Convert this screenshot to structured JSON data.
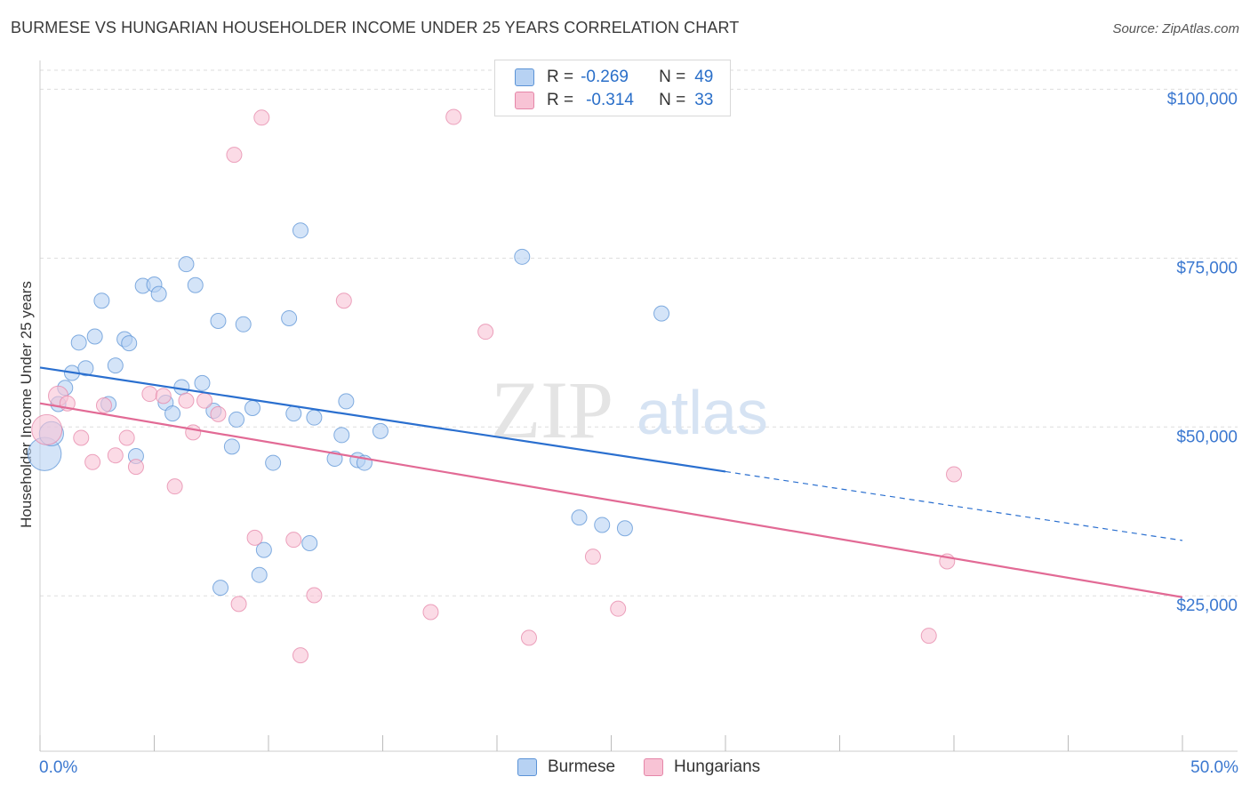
{
  "title": "BURMESE VS HUNGARIAN HOUSEHOLDER INCOME UNDER 25 YEARS CORRELATION CHART",
  "source": "Source: ZipAtlas.com",
  "watermark": {
    "zip": "ZIP",
    "atlas": "atlas"
  },
  "legend_top": {
    "rows": [
      {
        "r_label": "R =",
        "r_value": "-0.269",
        "n_label": "N =",
        "n_value": "49"
      },
      {
        "r_label": "R =",
        "r_value": "-0.314",
        "n_label": "N =",
        "n_value": "33"
      }
    ]
  },
  "legend_bottom": {
    "items": [
      "Burmese",
      "Hungarians"
    ]
  },
  "colors": {
    "burmese_fill": "#b7d2f3",
    "burmese_stroke": "#5b93d6",
    "burmese_line": "#2a6fcf",
    "hungarian_fill": "#f8c3d5",
    "hungarian_stroke": "#e586a8",
    "hungarian_line": "#e26a95",
    "tick_label": "#3b78d0",
    "grid": "#dddddd"
  },
  "chart_data": {
    "type": "scatter",
    "title": "BURMESE VS HUNGARIAN HOUSEHOLDER INCOME UNDER 25 YEARS CORRELATION CHART",
    "xlabel": "",
    "ylabel": "Householder Income Under 25 years",
    "xlim": [
      0,
      50
    ],
    "ylim": [
      2000,
      104000
    ],
    "x_tick_labels": [
      "0.0%",
      "50.0%"
    ],
    "y_ticks": [
      25000,
      50000,
      75000,
      100000
    ],
    "y_tick_labels": [
      "$25,000",
      "$50,000",
      "$75,000",
      "$100,000"
    ],
    "grid": true,
    "legend_placement": "bottom",
    "series": [
      {
        "name": "Burmese",
        "stats": {
          "R": -0.269,
          "N": 49
        },
        "trend": {
          "x0": 0,
          "y0": 58800,
          "x1": 30,
          "y1": 43400,
          "dash_to_x": 50,
          "dash_to_y": 33200
        },
        "points": [
          {
            "x": 0.2,
            "y": 46000,
            "s": 2.2
          },
          {
            "x": 0.5,
            "y": 49000,
            "s": 1.6
          },
          {
            "x": 0.8,
            "y": 53400,
            "s": 1
          },
          {
            "x": 1.1,
            "y": 55800,
            "s": 1
          },
          {
            "x": 1.4,
            "y": 58000,
            "s": 1
          },
          {
            "x": 1.7,
            "y": 62500,
            "s": 1
          },
          {
            "x": 2.0,
            "y": 58700,
            "s": 1
          },
          {
            "x": 2.4,
            "y": 63400,
            "s": 1
          },
          {
            "x": 2.7,
            "y": 68700,
            "s": 1
          },
          {
            "x": 3.0,
            "y": 53400,
            "s": 1
          },
          {
            "x": 3.3,
            "y": 59100,
            "s": 1
          },
          {
            "x": 3.7,
            "y": 63000,
            "s": 1
          },
          {
            "x": 3.9,
            "y": 62400,
            "s": 1
          },
          {
            "x": 4.2,
            "y": 45700,
            "s": 1
          },
          {
            "x": 4.5,
            "y": 70900,
            "s": 1
          },
          {
            "x": 5.0,
            "y": 71100,
            "s": 1
          },
          {
            "x": 5.2,
            "y": 69700,
            "s": 1
          },
          {
            "x": 5.5,
            "y": 53600,
            "s": 1
          },
          {
            "x": 5.8,
            "y": 52000,
            "s": 1
          },
          {
            "x": 6.2,
            "y": 55900,
            "s": 1
          },
          {
            "x": 6.4,
            "y": 74100,
            "s": 1
          },
          {
            "x": 6.8,
            "y": 71000,
            "s": 1
          },
          {
            "x": 7.1,
            "y": 56500,
            "s": 1
          },
          {
            "x": 7.6,
            "y": 52400,
            "s": 1
          },
          {
            "x": 7.8,
            "y": 65700,
            "s": 1
          },
          {
            "x": 7.9,
            "y": 26200,
            "s": 1
          },
          {
            "x": 8.4,
            "y": 47100,
            "s": 1
          },
          {
            "x": 8.6,
            "y": 51100,
            "s": 1
          },
          {
            "x": 8.9,
            "y": 65200,
            "s": 1
          },
          {
            "x": 9.3,
            "y": 52800,
            "s": 1
          },
          {
            "x": 9.6,
            "y": 28100,
            "s": 1
          },
          {
            "x": 9.8,
            "y": 31800,
            "s": 1
          },
          {
            "x": 10.2,
            "y": 44700,
            "s": 1
          },
          {
            "x": 10.9,
            "y": 66100,
            "s": 1
          },
          {
            "x": 11.1,
            "y": 52000,
            "s": 1
          },
          {
            "x": 11.4,
            "y": 79100,
            "s": 1
          },
          {
            "x": 11.8,
            "y": 32800,
            "s": 1
          },
          {
            "x": 12.0,
            "y": 51400,
            "s": 1
          },
          {
            "x": 12.9,
            "y": 45300,
            "s": 1
          },
          {
            "x": 13.2,
            "y": 48800,
            "s": 1
          },
          {
            "x": 13.4,
            "y": 53800,
            "s": 1
          },
          {
            "x": 13.9,
            "y": 45100,
            "s": 1
          },
          {
            "x": 14.2,
            "y": 44700,
            "s": 1
          },
          {
            "x": 14.9,
            "y": 49400,
            "s": 1
          },
          {
            "x": 21.1,
            "y": 75200,
            "s": 1
          },
          {
            "x": 23.6,
            "y": 36600,
            "s": 1
          },
          {
            "x": 24.6,
            "y": 35500,
            "s": 1
          },
          {
            "x": 25.6,
            "y": 35000,
            "s": 1
          },
          {
            "x": 27.2,
            "y": 66800,
            "s": 1
          }
        ]
      },
      {
        "name": "Hungarians",
        "stats": {
          "R": -0.314,
          "N": 33
        },
        "trend": {
          "x0": 0,
          "y0": 53500,
          "x1": 50,
          "y1": 24800
        },
        "points": [
          {
            "x": 0.3,
            "y": 49600,
            "s": 2.0
          },
          {
            "x": 0.8,
            "y": 54600,
            "s": 1.3
          },
          {
            "x": 1.2,
            "y": 53500,
            "s": 1
          },
          {
            "x": 1.8,
            "y": 48400,
            "s": 1
          },
          {
            "x": 2.3,
            "y": 44800,
            "s": 1
          },
          {
            "x": 2.8,
            "y": 53200,
            "s": 1
          },
          {
            "x": 3.3,
            "y": 45800,
            "s": 1
          },
          {
            "x": 3.8,
            "y": 48400,
            "s": 1
          },
          {
            "x": 4.2,
            "y": 44100,
            "s": 1
          },
          {
            "x": 4.8,
            "y": 54900,
            "s": 1
          },
          {
            "x": 5.4,
            "y": 54600,
            "s": 1
          },
          {
            "x": 5.9,
            "y": 41200,
            "s": 1
          },
          {
            "x": 6.4,
            "y": 53900,
            "s": 1
          },
          {
            "x": 6.7,
            "y": 49200,
            "s": 1
          },
          {
            "x": 7.2,
            "y": 53900,
            "s": 1
          },
          {
            "x": 7.8,
            "y": 51900,
            "s": 1
          },
          {
            "x": 8.5,
            "y": 90300,
            "s": 1
          },
          {
            "x": 8.7,
            "y": 23800,
            "s": 1
          },
          {
            "x": 9.4,
            "y": 33600,
            "s": 1
          },
          {
            "x": 9.7,
            "y": 95800,
            "s": 1
          },
          {
            "x": 11.1,
            "y": 33300,
            "s": 1
          },
          {
            "x": 11.4,
            "y": 16200,
            "s": 1
          },
          {
            "x": 12.0,
            "y": 25100,
            "s": 1
          },
          {
            "x": 13.3,
            "y": 68700,
            "s": 1
          },
          {
            "x": 17.1,
            "y": 22600,
            "s": 1
          },
          {
            "x": 18.1,
            "y": 95900,
            "s": 1
          },
          {
            "x": 19.5,
            "y": 64100,
            "s": 1
          },
          {
            "x": 21.4,
            "y": 18800,
            "s": 1
          },
          {
            "x": 24.2,
            "y": 30800,
            "s": 1
          },
          {
            "x": 25.3,
            "y": 23100,
            "s": 1
          },
          {
            "x": 38.9,
            "y": 19100,
            "s": 1
          },
          {
            "x": 39.7,
            "y": 30100,
            "s": 1
          },
          {
            "x": 40.0,
            "y": 43000,
            "s": 1
          }
        ]
      }
    ]
  }
}
